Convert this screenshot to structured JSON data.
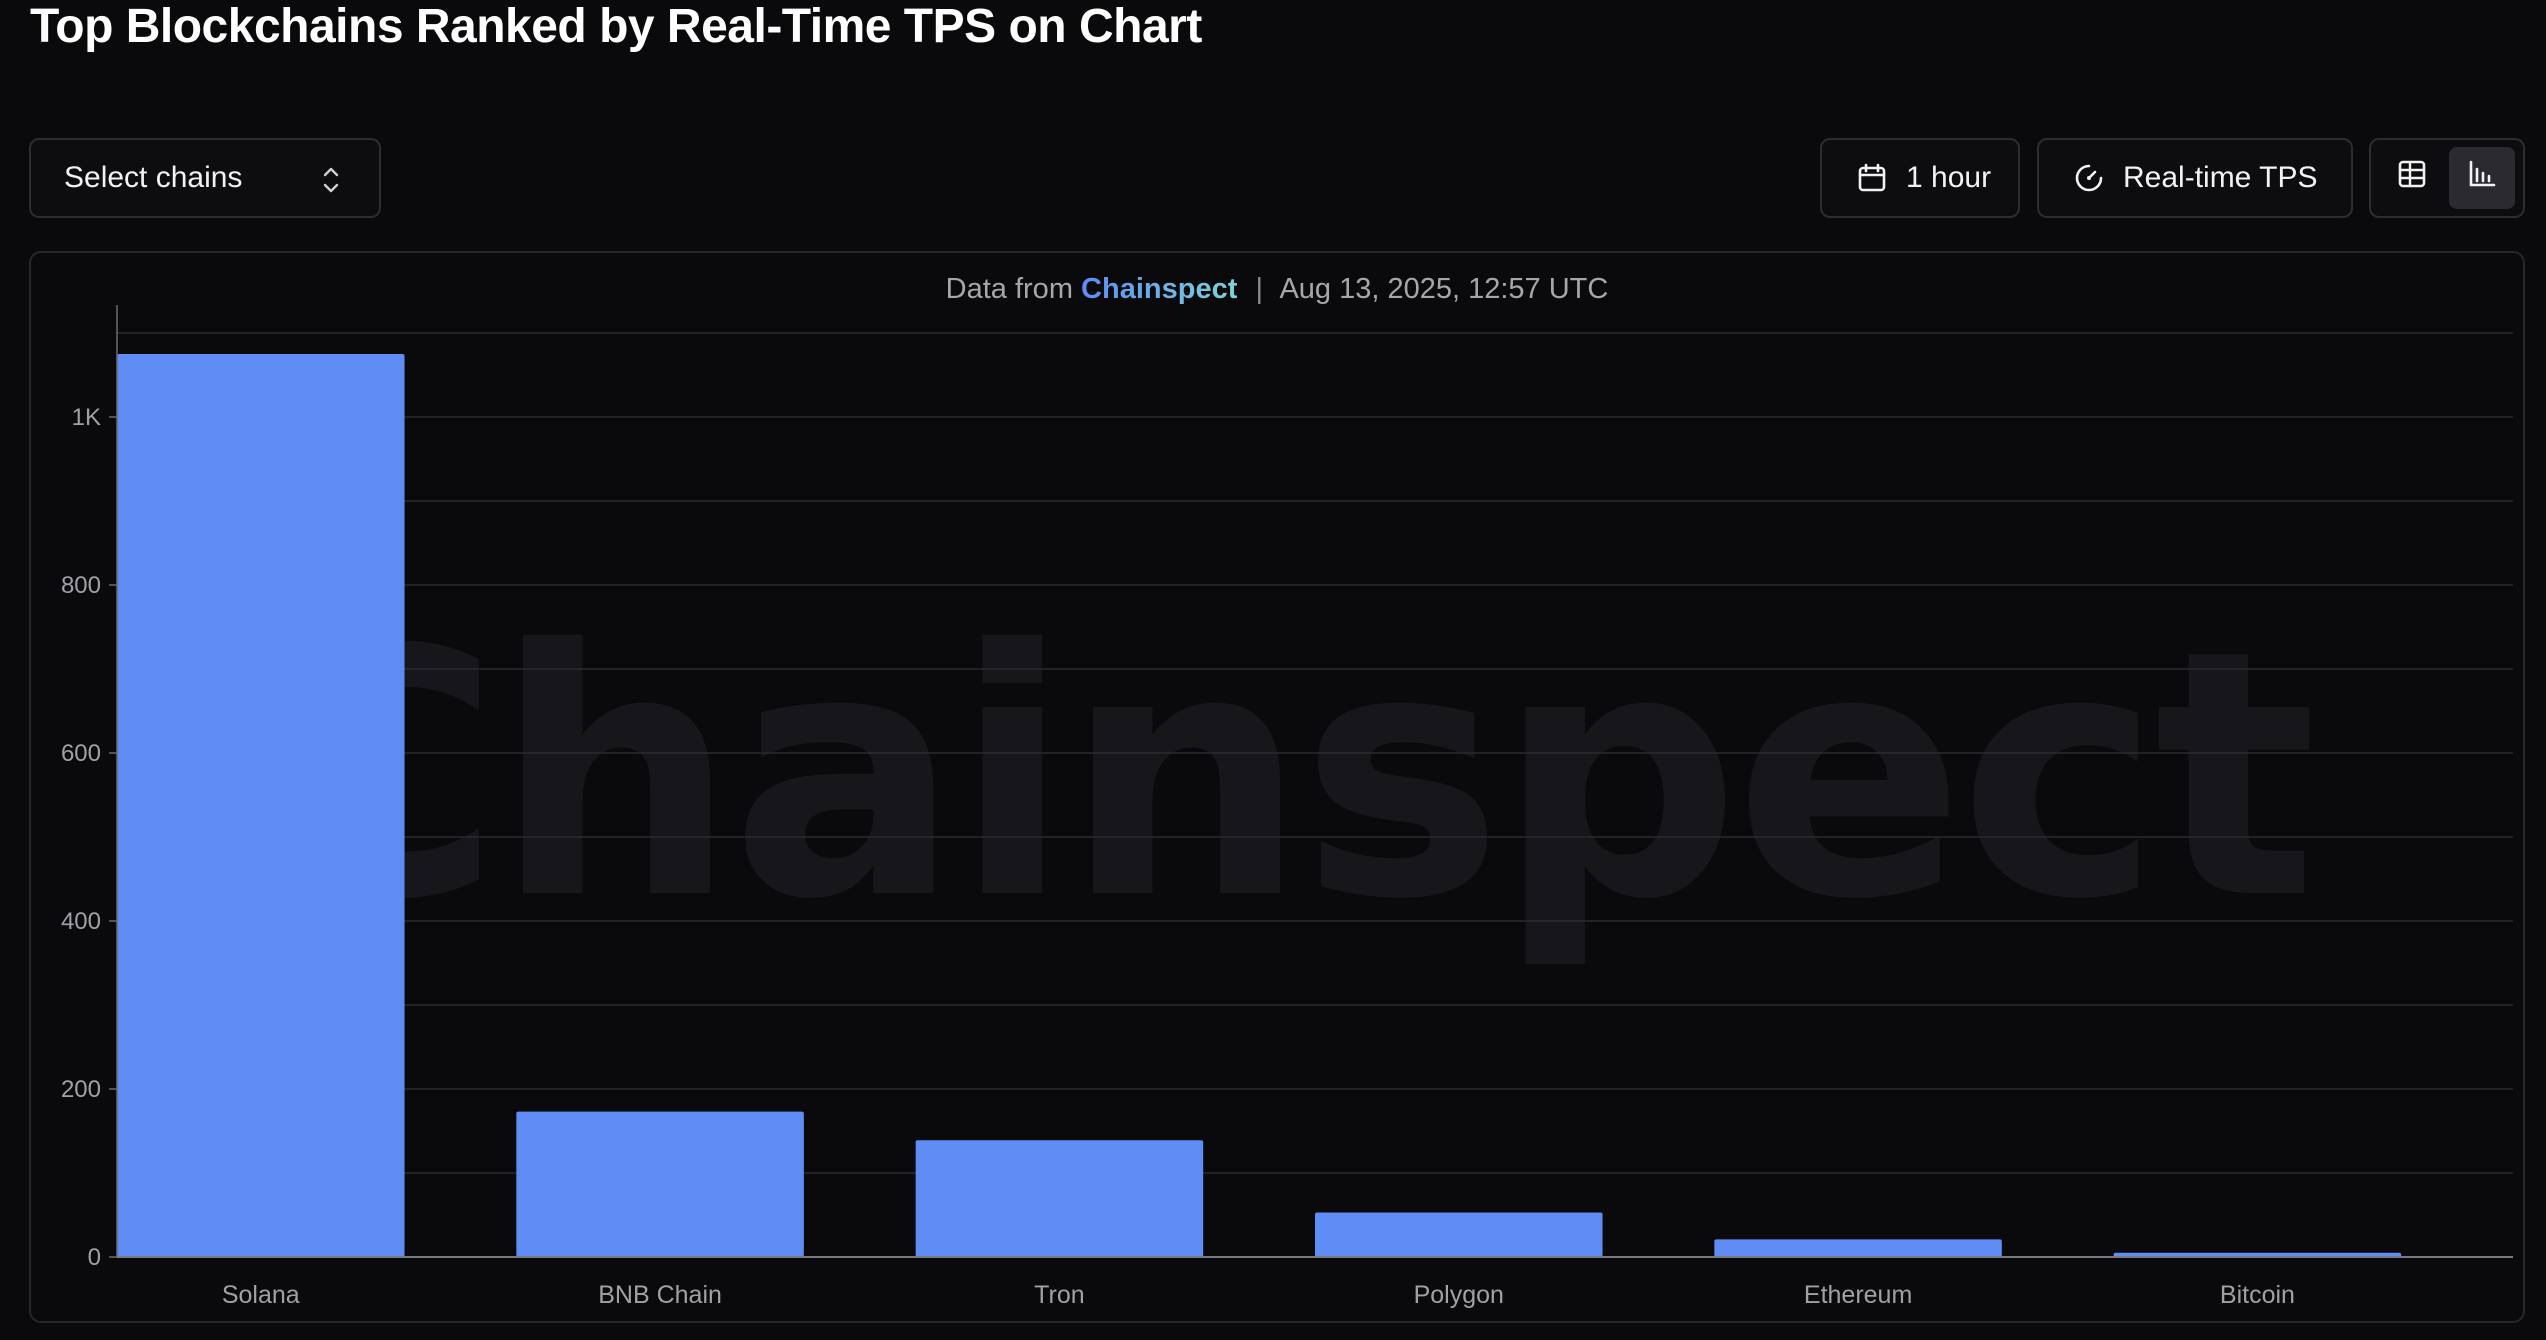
{
  "page": {
    "title": "Top Blockchains Ranked by Real-Time TPS on Chart"
  },
  "controls": {
    "select_chains_label": "Select chains",
    "time_range_label": "1 hour",
    "metric_label": "Real-time TPS",
    "icons": {
      "select": "chevron-up-down-icon",
      "time": "calendar-icon",
      "metric": "gauge-icon",
      "table_view": "table-view-icon",
      "chart_view": "bar-chart-view-icon"
    },
    "active_view": "chart"
  },
  "source": {
    "prefix": "Data from",
    "brand": "Chainspect",
    "separator": "|",
    "timestamp": "Aug 13, 2025, 12:57 UTC"
  },
  "watermark": "Chainspect",
  "colors": {
    "bar": "#5f8cf5",
    "background": "#0a0a0c",
    "gridline": "#2a2a2f"
  },
  "chart_data": {
    "type": "bar",
    "categories": [
      "Solana",
      "BNB Chain",
      "Tron",
      "Polygon",
      "Ethereum",
      "Bitcoin"
    ],
    "values": [
      1075,
      173,
      139,
      53,
      21,
      5
    ],
    "y_ticks": [
      0,
      200,
      400,
      600,
      800,
      1000
    ],
    "y_tick_labels": [
      "0",
      "200",
      "400",
      "600",
      "800",
      "1K"
    ],
    "ylim": [
      0,
      1100
    ],
    "grid": true,
    "title": "",
    "xlabel": "",
    "ylabel": ""
  }
}
